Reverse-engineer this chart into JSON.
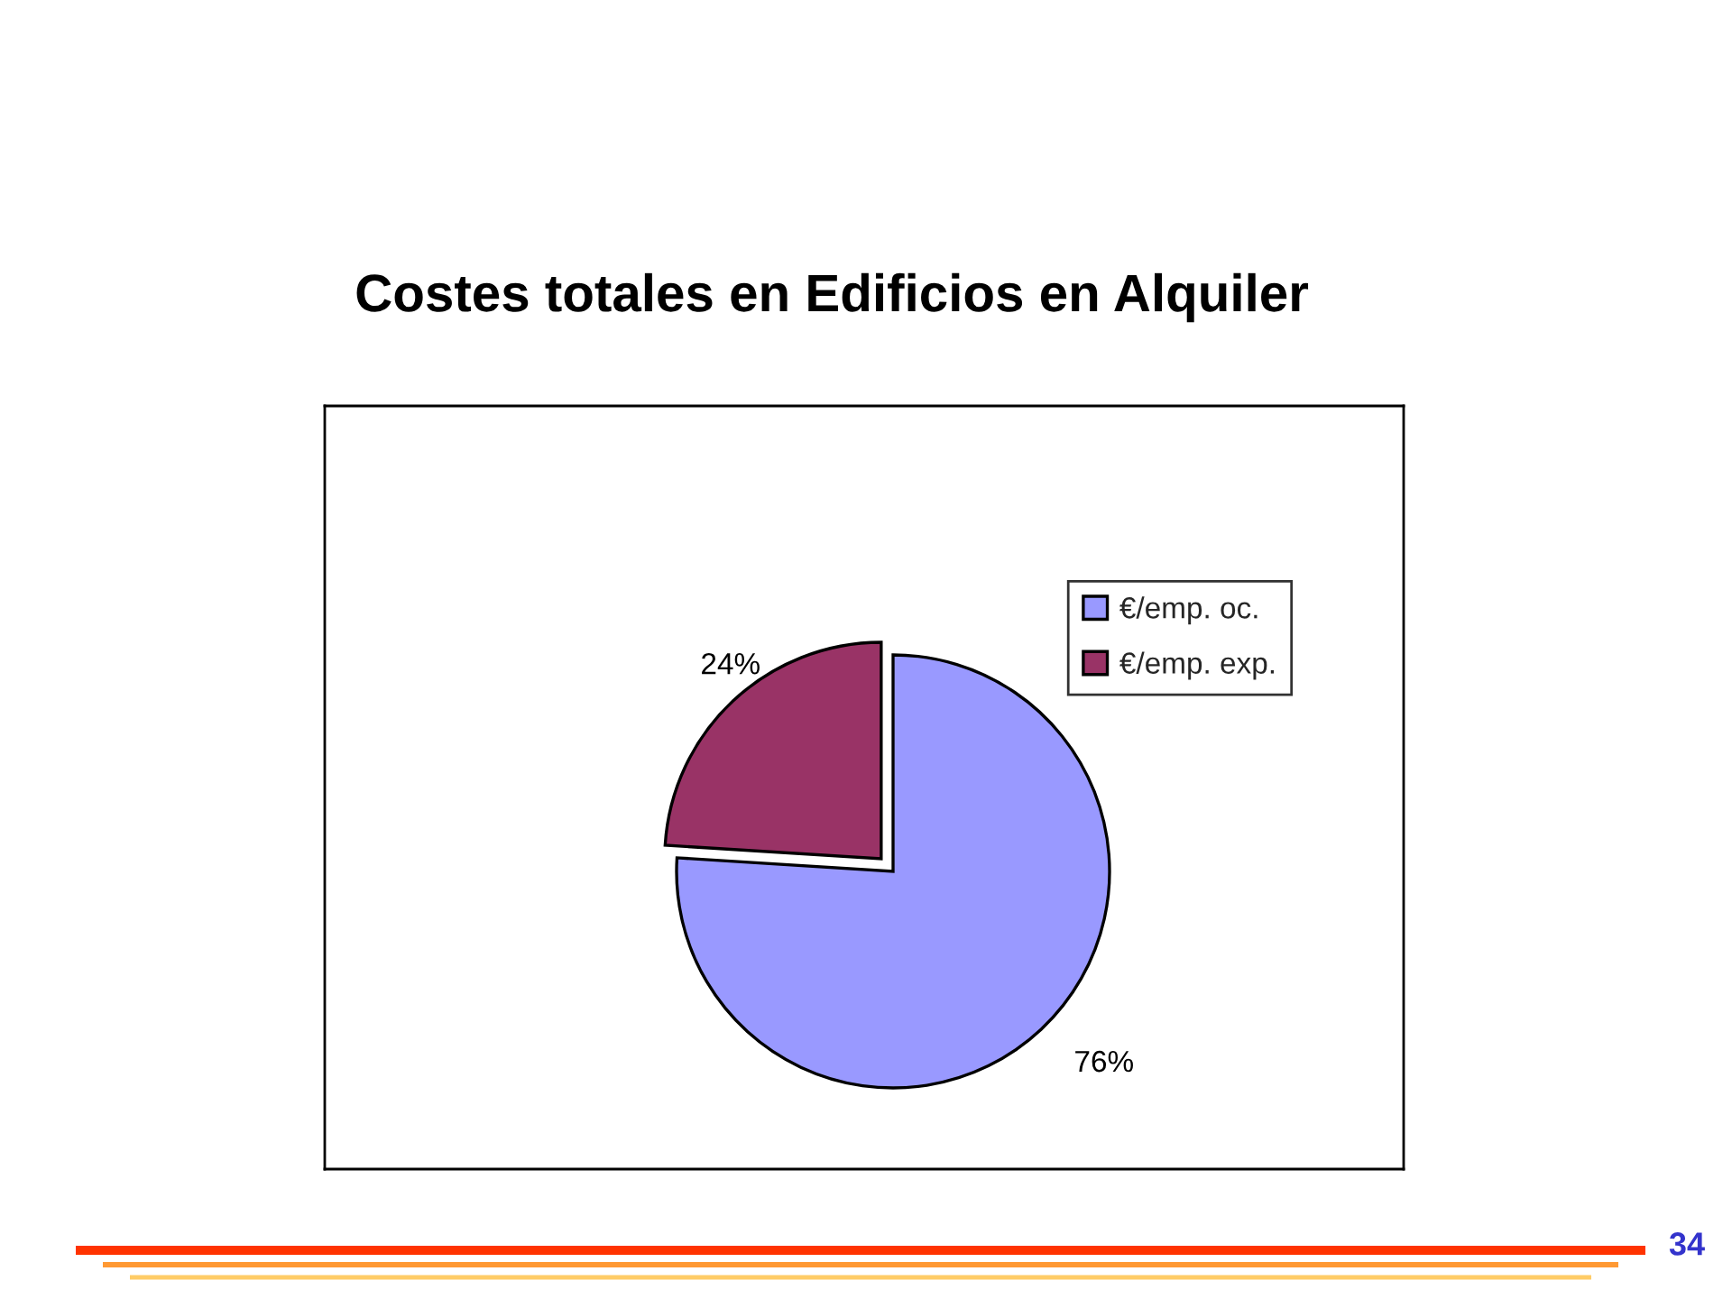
{
  "chart_data": {
    "type": "pie",
    "title": "Costes totales en Edificios en Alquiler",
    "categories": [
      "€/emp. oc.",
      "€/emp. exp."
    ],
    "values": [
      76,
      24
    ],
    "colors": [
      "#9999ff",
      "#993366"
    ],
    "value_labels": [
      "76%",
      "24%"
    ],
    "legend": "top right",
    "annotations": [
      "34"
    ]
  }
}
